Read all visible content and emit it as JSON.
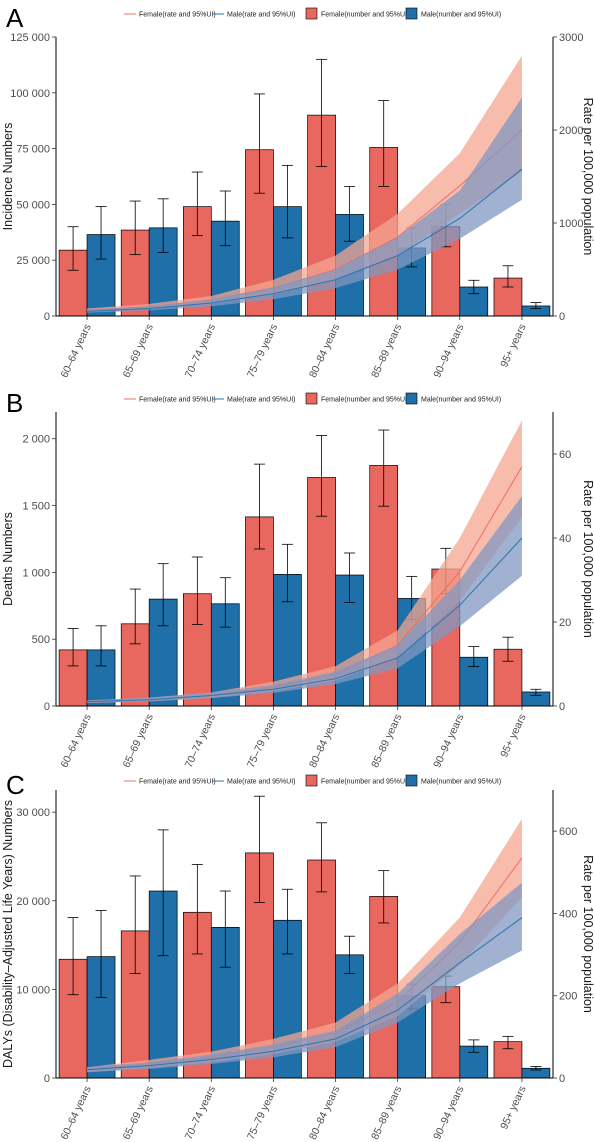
{
  "colors": {
    "female_bar": "#E8685F",
    "male_bar": "#1F6FA8",
    "female_line": "#F06C60",
    "male_line": "#2A74AE",
    "female_band": "#F4A690",
    "male_band": "#8097C2"
  },
  "legend": {
    "female_rate": "Female(rate and 95%UI)",
    "male_rate": "Male(rate and 95%UI)",
    "female_number": "Female(number and 95%UI)",
    "male_number": "Male(number and 95%UI)"
  },
  "chart_data": [
    {
      "type": "bar",
      "panel_label": "A",
      "categories": [
        "60–64 years",
        "65–69 years",
        "70–74 years",
        "75–79 years",
        "80–84 years",
        "85–89 years",
        "90–94 years",
        "95+ years"
      ],
      "ylabel": "Incidence Numbers",
      "y2label": "Rate per 100,000 population",
      "ylim": [
        0,
        125000
      ],
      "y2lim": [
        0,
        3000
      ],
      "yticks": [
        0,
        25000,
        50000,
        75000,
        100000,
        125000
      ],
      "ytick_labels": [
        "0",
        "25 000",
        "50 000",
        "75 000",
        "100 000",
        "125 000"
      ],
      "y2ticks": [
        0,
        1000,
        2000,
        3000
      ],
      "y2tick_labels": [
        "0",
        "1000",
        "2000",
        "3000"
      ],
      "series": [
        {
          "name": "Female(number and 95%UI)",
          "kind": "bar",
          "values": [
            29500,
            38500,
            49000,
            74500,
            90000,
            75500,
            40000,
            17000
          ],
          "lower": [
            20500,
            27500,
            36000,
            55000,
            67000,
            58000,
            31000,
            13000
          ],
          "upper": [
            40000,
            51500,
            64500,
            99500,
            115000,
            96500,
            50000,
            22500
          ]
        },
        {
          "name": "Male(number and 95%UI)",
          "kind": "bar",
          "values": [
            36500,
            39500,
            42500,
            49000,
            45500,
            30500,
            13000,
            4500
          ],
          "lower": [
            25500,
            28500,
            31500,
            35000,
            33500,
            22000,
            10000,
            3300
          ],
          "upper": [
            49000,
            52500,
            56000,
            67500,
            58000,
            39500,
            16000,
            6000
          ]
        },
        {
          "name": "Female(rate and 95%UI)",
          "kind": "line",
          "values": [
            60,
            100,
            170,
            300,
            500,
            850,
            1400,
            2000
          ],
          "lower": [
            40,
            75,
            130,
            230,
            390,
            650,
            1100,
            1550
          ],
          "upper": [
            80,
            130,
            215,
            390,
            650,
            1100,
            1750,
            2800
          ]
        },
        {
          "name": "Male(rate and 95%UI)",
          "kind": "line",
          "values": [
            50,
            80,
            140,
            240,
            390,
            650,
            1050,
            1580
          ],
          "lower": [
            35,
            60,
            105,
            180,
            300,
            500,
            830,
            1250
          ],
          "upper": [
            65,
            105,
            180,
            310,
            500,
            850,
            1350,
            2350
          ]
        }
      ]
    },
    {
      "type": "bar",
      "panel_label": "B",
      "categories": [
        "60–64 years",
        "65–69 years",
        "70–74 years",
        "75–79 years",
        "80–84 years",
        "85–89 years",
        "90–94 years",
        "95+ years"
      ],
      "ylabel": "Deaths Numbers",
      "y2label": "Rate per 100,000 population",
      "ylim": [
        0,
        2200
      ],
      "y2lim": [
        0,
        70
      ],
      "yticks": [
        0,
        500,
        1000,
        1500,
        2000
      ],
      "ytick_labels": [
        "0",
        "500",
        "1 000",
        "1 500",
        "2 000"
      ],
      "y2ticks": [
        0,
        20,
        40,
        60
      ],
      "y2tick_labels": [
        "0",
        "20",
        "40",
        "60"
      ],
      "series": [
        {
          "name": "Female(number and 95%UI)",
          "kind": "bar",
          "values": [
            420,
            615,
            840,
            1415,
            1710,
            1800,
            1025,
            425
          ],
          "lower": [
            300,
            465,
            610,
            1175,
            1420,
            1495,
            840,
            335
          ],
          "upper": [
            580,
            875,
            1115,
            1810,
            2025,
            2065,
            1180,
            515
          ]
        },
        {
          "name": "Male(number and 95%UI)",
          "kind": "bar",
          "values": [
            420,
            800,
            765,
            985,
            980,
            805,
            365,
            105
          ],
          "lower": [
            300,
            600,
            590,
            780,
            775,
            645,
            295,
            80
          ],
          "upper": [
            600,
            1065,
            960,
            1210,
            1145,
            970,
            445,
            125
          ]
        },
        {
          "name": "Female(rate and 95%UI)",
          "kind": "line",
          "values": [
            1,
            1.5,
            2.5,
            4.5,
            7.5,
            14.5,
            32,
            57
          ],
          "lower": [
            0.7,
            1.1,
            1.9,
            3.5,
            6,
            11.5,
            25,
            45
          ],
          "upper": [
            1.3,
            2,
            3.2,
            5.8,
            9.5,
            18,
            40,
            68
          ]
        },
        {
          "name": "Male(rate and 95%UI)",
          "kind": "line",
          "values": [
            1,
            1.5,
            2.5,
            4,
            6.5,
            11.5,
            24,
            40
          ],
          "lower": [
            0.7,
            1.1,
            1.9,
            3.1,
            5.2,
            9,
            19,
            31
          ],
          "upper": [
            1.3,
            2,
            3.2,
            5,
            8.2,
            14.5,
            30,
            50
          ]
        }
      ]
    },
    {
      "type": "bar",
      "panel_label": "C",
      "categories": [
        "60–64 years",
        "65–69 years",
        "70–74 years",
        "75–79 years",
        "80–84 years",
        "85–89 years",
        "90–94 years",
        "95+ years"
      ],
      "ylabel": "DALYs (Disability–Adjusted Life Years) Numbers",
      "y2label": "Rate per 100,000 population",
      "ylim": [
        0,
        32500
      ],
      "y2lim": [
        0,
        700
      ],
      "yticks": [
        0,
        10000,
        20000,
        30000
      ],
      "ytick_labels": [
        "0",
        "10 000",
        "20 000",
        "30 000"
      ],
      "y2ticks": [
        0,
        200,
        400,
        600
      ],
      "y2tick_labels": [
        "0",
        "200",
        "400",
        "600"
      ],
      "series": [
        {
          "name": "Female(number and 95%UI)",
          "kind": "bar",
          "values": [
            13400,
            16600,
            18700,
            25400,
            24600,
            20500,
            10300,
            4100
          ],
          "lower": [
            9400,
            11800,
            14000,
            19800,
            21000,
            17500,
            8500,
            3300
          ],
          "upper": [
            18100,
            22800,
            24100,
            31800,
            28800,
            23400,
            11500,
            4700
          ]
        },
        {
          "name": "Male(number and 95%UI)",
          "kind": "bar",
          "values": [
            13700,
            21100,
            17000,
            17800,
            13900,
            9300,
            3600,
            1100
          ],
          "lower": [
            9100,
            13800,
            12500,
            14000,
            11800,
            7800,
            2900,
            900
          ],
          "upper": [
            18900,
            28000,
            21100,
            21300,
            16000,
            10600,
            4300,
            1300
          ]
        },
        {
          "name": "Female(rate and 95%UI)",
          "kind": "line",
          "values": [
            20,
            35,
            50,
            75,
            110,
            185,
            330,
            535
          ],
          "lower": [
            14,
            25,
            38,
            58,
            88,
            150,
            275,
            440
          ],
          "upper": [
            26,
            44,
            64,
            95,
            135,
            230,
            390,
            630
          ]
        },
        {
          "name": "Male(rate and 95%UI)",
          "kind": "line",
          "values": [
            20,
            30,
            45,
            65,
            95,
            165,
            280,
            390
          ],
          "lower": [
            14,
            22,
            34,
            50,
            75,
            135,
            230,
            310
          ],
          "upper": [
            26,
            38,
            57,
            82,
            115,
            205,
            350,
            475
          ]
        }
      ]
    }
  ]
}
